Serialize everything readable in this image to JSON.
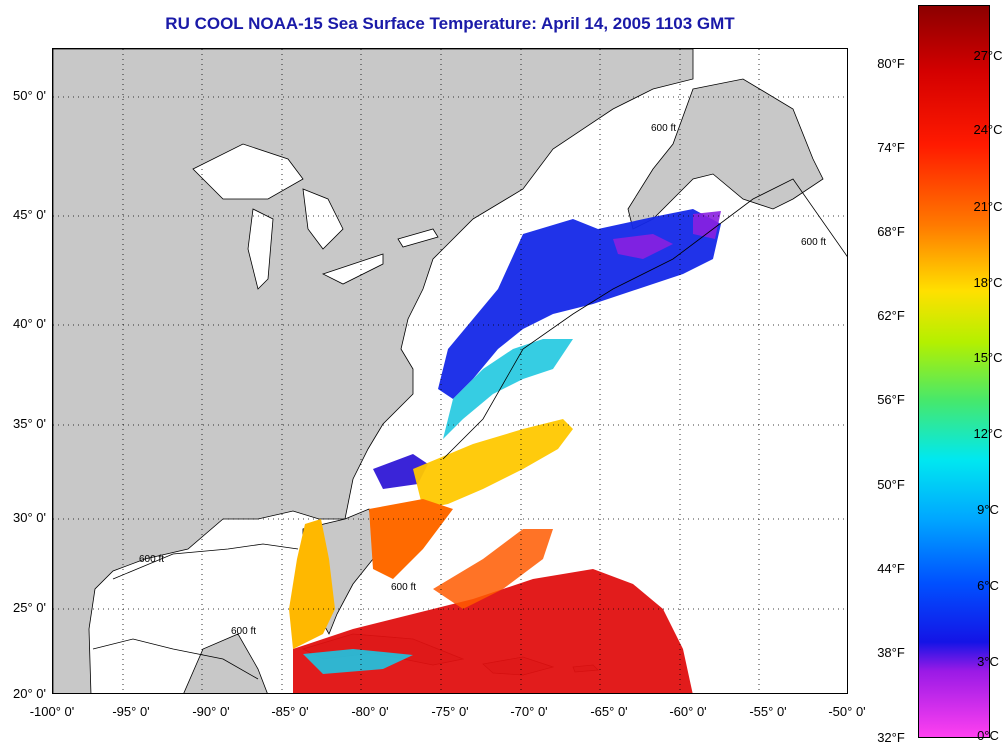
{
  "title": "RU COOL  NOAA-15  Sea Surface Temperature:  April 14, 2005 1103 GMT",
  "map": {
    "lon_range": [
      -100,
      -50
    ],
    "lat_range": [
      20,
      52
    ],
    "grid": "dotted",
    "land_color": "#c8c8c8",
    "contour_label": "600 ft",
    "lat_ticks": [
      "50° 0'",
      "45° 0'",
      "40° 0'",
      "35° 0'",
      "30° 0'",
      "25° 0'",
      "20° 0'"
    ],
    "lon_ticks": [
      "-100° 0'",
      "-95° 0'",
      "-90° 0'",
      "-85° 0'",
      "-80° 0'",
      "-75° 0'",
      "-70° 0'",
      "-65° 0'",
      "-60° 0'",
      "-55° 0'",
      "-50° 0'"
    ]
  },
  "colorbar": {
    "fahrenheit_labels": [
      "80°F",
      "74°F",
      "68°F",
      "62°F",
      "56°F",
      "50°F",
      "44°F",
      "38°F",
      "32°F"
    ],
    "celsius_labels": [
      "27°C",
      "24°C",
      "21°C",
      "18°C",
      "15°C",
      "12°C",
      "9°C",
      "6°C",
      "3°C",
      "0°C"
    ],
    "scale_min_c": 0,
    "scale_max_c": 29
  }
}
